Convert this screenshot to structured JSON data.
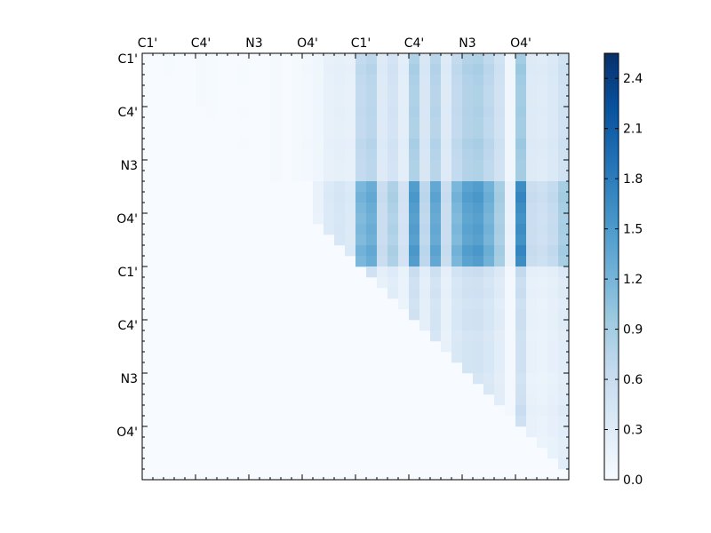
{
  "chart_data": {
    "type": "heatmap",
    "title": "",
    "xlabel": "",
    "ylabel": "",
    "n": 40,
    "x_tick_labels": [
      "C1'",
      "C4'",
      "N3",
      "O4'",
      "C1'",
      "C4'",
      "N3",
      "O4'"
    ],
    "y_tick_labels": [
      "C1'",
      "C4'",
      "N3",
      "O4'",
      "C1'",
      "C4'",
      "N3",
      "O4'"
    ],
    "tick_indices": [
      0,
      5,
      10,
      15,
      20,
      25,
      30,
      35
    ],
    "colorbar": {
      "range": [
        0.0,
        2.55
      ],
      "ticks": [
        0.0,
        0.3,
        0.6,
        0.9,
        1.2,
        1.5,
        1.8,
        2.1,
        2.4
      ],
      "tick_labels": [
        "0.0",
        "0.3",
        "0.6",
        "0.9",
        "1.2",
        "1.5",
        "1.8",
        "2.1",
        "2.4"
      ],
      "colors": [
        "#f7fbff",
        "#deebf7",
        "#c6dbef",
        "#9ecae1",
        "#6baed6",
        "#4292c6",
        "#2171b5",
        "#08519c",
        "#08306b"
      ]
    },
    "column_weights": [
      0.05,
      0.05,
      0.08,
      0.05,
      0.05,
      0.1,
      0.08,
      0.05,
      0.05,
      0.06,
      0.05,
      0.05,
      0.1,
      0.05,
      0.1,
      0.2,
      0.15,
      0.3,
      0.35,
      0.3,
      1.0,
      1.1,
      0.5,
      0.7,
      0.4,
      1.25,
      0.6,
      1.15,
      0.5,
      1.0,
      1.2,
      1.25,
      1.05,
      0.75,
      0.15,
      1.4,
      0.5,
      0.45,
      0.55,
      0.75
    ],
    "row_weights": [
      0.1,
      0.15,
      0.12,
      0.1,
      0.1,
      0.12,
      0.1,
      0.1,
      0.15,
      0.12,
      0.1,
      0.1,
      0.12,
      0.15,
      0.12,
      0.1,
      0.12,
      0.1,
      0.15,
      0.12,
      0.5,
      0.35,
      0.4,
      0.3,
      0.35,
      0.35,
      0.25,
      0.3,
      0.3,
      0.3,
      0.2,
      0.25,
      0.3,
      0.4,
      0.3,
      0.3,
      0.2,
      0.2,
      0.3,
      0.2
    ],
    "block_scales": [
      {
        "rows": [
          0,
          12
        ],
        "cols": [
          0,
          16
        ],
        "scale": 0.5
      },
      {
        "rows": [
          0,
          12
        ],
        "cols": [
          16,
          40
        ],
        "scale": 1.0
      },
      {
        "rows": [
          12,
          20
        ],
        "cols": [
          16,
          40
        ],
        "scale": 1.75
      },
      {
        "rows": [
          20,
          40
        ],
        "cols": [
          20,
          40
        ],
        "scale": 0.45
      }
    ]
  }
}
